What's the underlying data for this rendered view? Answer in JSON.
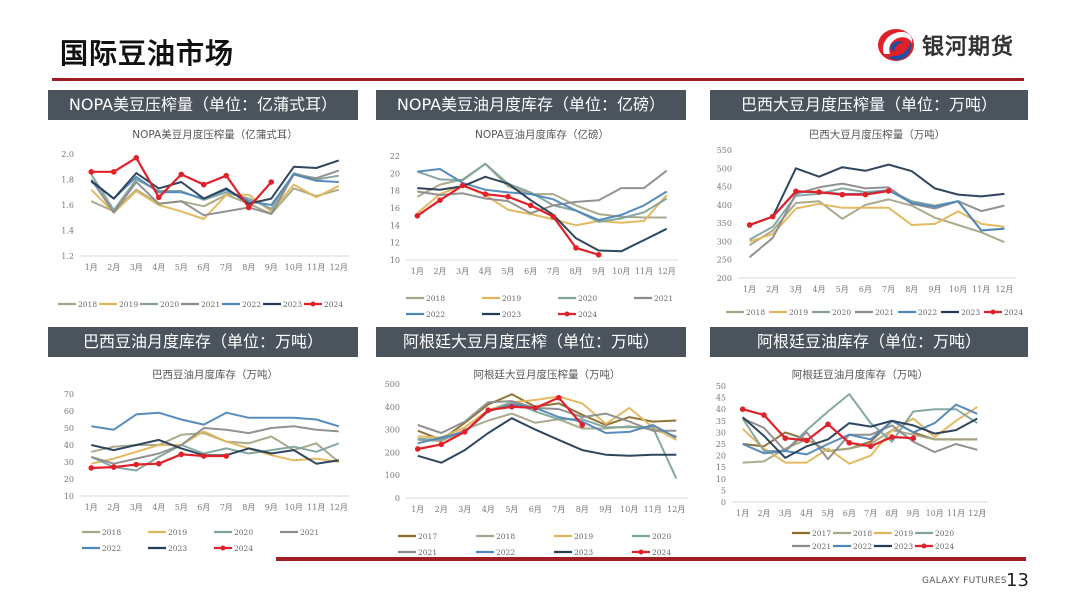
{
  "page": {
    "title": "国际豆油市场",
    "brand_cn": "银河期货",
    "brand_en": "GALAXY FUTURES",
    "page_number": "13",
    "accent": "#a01c24",
    "header_bg": "#4b535c"
  },
  "panels": [
    {
      "header": "NOPA美豆压榨量（单位：亿蒲式耳）"
    },
    {
      "header": "NOPA美豆油月度库存（单位：亿磅）"
    },
    {
      "header": "巴西大豆月度压榨量（单位：万吨）"
    },
    {
      "header": "巴西豆油月度库存（单位：万吨）"
    },
    {
      "header": "阿根廷大豆月度压榨（单位：万吨）"
    },
    {
      "header": "阿根廷豆油库存（单位：万吨）"
    }
  ],
  "series_colors": {
    "2017": "#8b6d2e",
    "2018": "#a5a587",
    "2019": "#e0b65a",
    "2020": "#7fa39d",
    "2021": "#8c8c8c",
    "2022": "#4f86b8",
    "2023": "#253c55",
    "2024": "#e0212a"
  },
  "chart_data": [
    {
      "type": "line",
      "title": "NOPA美豆月度压榨量（亿蒲式耳）",
      "categories": [
        "1月",
        "2月",
        "3月",
        "4月",
        "5月",
        "6月",
        "7月",
        "8月",
        "9月",
        "10月",
        "11月",
        "12月"
      ],
      "ylim": [
        1.2,
        2.0
      ],
      "yticks": [
        "1.2",
        "1.4",
        "1.6",
        "1.8",
        "2.0"
      ],
      "legend": "bottom",
      "series": [
        {
          "name": "2018",
          "values": [
            1.63,
            1.55,
            1.72,
            1.61,
            1.63,
            1.59,
            1.68,
            1.61,
            1.53,
            1.73,
            1.67,
            1.72
          ]
        },
        {
          "name": "2019",
          "values": [
            1.72,
            1.54,
            1.71,
            1.6,
            1.55,
            1.49,
            1.68,
            1.68,
            1.55,
            1.76,
            1.66,
            1.75
          ]
        },
        {
          "name": "2020",
          "values": [
            1.84,
            1.56,
            1.8,
            1.71,
            1.71,
            1.64,
            1.7,
            1.65,
            1.57,
            1.85,
            1.8,
            1.83
          ]
        },
        {
          "name": "2021",
          "values": [
            1.8,
            1.54,
            1.78,
            1.61,
            1.63,
            1.52,
            1.55,
            1.58,
            1.53,
            1.84,
            1.81,
            1.87
          ]
        },
        {
          "name": "2022",
          "values": [
            1.78,
            1.65,
            1.82,
            1.7,
            1.7,
            1.65,
            1.72,
            1.63,
            1.6,
            1.84,
            1.79,
            1.78
          ]
        },
        {
          "name": "2023",
          "values": [
            1.79,
            1.65,
            1.85,
            1.73,
            1.78,
            1.65,
            1.73,
            1.61,
            1.65,
            1.9,
            1.89,
            1.95
          ]
        },
        {
          "name": "2024",
          "values": [
            1.86,
            1.86,
            1.97,
            1.66,
            1.84,
            1.76,
            1.83,
            1.58,
            1.78,
            null,
            null,
            null
          ],
          "markers": true
        }
      ]
    },
    {
      "type": "line",
      "title": "NOPA豆油月度库存（亿磅）",
      "categories": [
        "1月",
        "2月",
        "3月",
        "4月",
        "5月",
        "6月",
        "7月",
        "8月",
        "9月",
        "10月",
        "11月",
        "12月"
      ],
      "ylim": [
        10,
        22
      ],
      "yticks": [
        "10",
        "12",
        "14",
        "16",
        "18",
        "20",
        "22"
      ],
      "legend": "bottom",
      "series": [
        {
          "name": "2018",
          "values": [
            17.3,
            18.7,
            19.3,
            21.1,
            18.5,
            17.6,
            17.6,
            16.3,
            15.3,
            15.0,
            14.9,
            14.9
          ]
        },
        {
          "name": "2019",
          "values": [
            15.4,
            17.6,
            18.6,
            17.5,
            15.8,
            15.3,
            14.7,
            14.0,
            14.5,
            14.3,
            14.5,
            17.5
          ]
        },
        {
          "name": "2020",
          "values": [
            20.2,
            19.3,
            19.2,
            21.1,
            18.8,
            17.8,
            16.3,
            15.7,
            14.4,
            14.8,
            15.5,
            17.1
          ]
        },
        {
          "name": "2021",
          "values": [
            17.9,
            17.5,
            17.7,
            17.1,
            16.8,
            15.4,
            16.3,
            16.7,
            16.9,
            18.3,
            18.3,
            20.3
          ]
        },
        {
          "name": "2022",
          "values": [
            20.2,
            20.5,
            18.9,
            18.1,
            17.8,
            17.6,
            17.0,
            15.7,
            14.6,
            15.2,
            16.3,
            17.9
          ]
        },
        {
          "name": "2023",
          "values": [
            18.3,
            18.1,
            18.5,
            19.6,
            18.8,
            16.9,
            15.2,
            12.5,
            11.1,
            11.0,
            12.3,
            13.6
          ]
        },
        {
          "name": "2024",
          "values": [
            15.1,
            16.9,
            18.6,
            17.6,
            17.3,
            16.3,
            15.0,
            11.4,
            10.6,
            null,
            null,
            null
          ],
          "markers": true
        }
      ]
    },
    {
      "type": "line",
      "title": "巴西大豆月度压榨量（万吨）",
      "categories": [
        "1月",
        "2月",
        "3月",
        "4月",
        "5月",
        "6月",
        "7月",
        "8月",
        "9月",
        "10月",
        "11月",
        "12月"
      ],
      "ylim": [
        200,
        550
      ],
      "yticks": [
        "200",
        "250",
        "300",
        "350",
        "400",
        "450",
        "500",
        "550"
      ],
      "legend": "bottom",
      "series": [
        {
          "name": "2018",
          "values": [
            290,
            330,
            405,
            410,
            362,
            400,
            415,
            398,
            365,
            345,
            325,
            298
          ]
        },
        {
          "name": "2019",
          "values": [
            300,
            320,
            390,
            403,
            392,
            392,
            392,
            345,
            348,
            382,
            348,
            340
          ]
        },
        {
          "name": "2020",
          "values": [
            305,
            340,
            425,
            430,
            445,
            435,
            440,
            410,
            398,
            410,
            330,
            335
          ]
        },
        {
          "name": "2021",
          "values": [
            257,
            310,
            430,
            448,
            458,
            445,
            448,
            403,
            390,
            410,
            383,
            398
          ]
        },
        {
          "name": "2022",
          "values": [
            345,
            368,
            435,
            435,
            430,
            430,
            440,
            405,
            395,
            410,
            330,
            335
          ]
        },
        {
          "name": "2023",
          "values": [
            345,
            368,
            500,
            477,
            503,
            493,
            510,
            492,
            445,
            428,
            423,
            430
          ]
        },
        {
          "name": "2024",
          "values": [
            345,
            368,
            437,
            435,
            428,
            428,
            438,
            null,
            null,
            null,
            null,
            null
          ],
          "markers": true
        }
      ]
    },
    {
      "type": "line",
      "title": "巴西豆油月度库存（万吨）",
      "categories": [
        "1月",
        "2月",
        "3月",
        "4月",
        "5月",
        "6月",
        "7月",
        "8月",
        "9月",
        "10月",
        "11月",
        "12月"
      ],
      "ylim": [
        10,
        70
      ],
      "yticks": [
        "10",
        "20",
        "30",
        "40",
        "50",
        "60",
        "70"
      ],
      "legend": "bottom",
      "series": [
        {
          "name": "2018",
          "values": [
            36,
            39,
            40,
            40,
            46,
            47,
            42,
            41,
            45,
            37,
            41,
            30
          ]
        },
        {
          "name": "2019",
          "values": [
            29,
            32,
            36,
            40,
            40,
            48,
            42,
            38,
            34,
            31,
            32,
            30
          ]
        },
        {
          "name": "2020",
          "values": [
            33,
            27,
            25,
            33,
            40,
            35,
            38,
            35,
            37,
            39,
            36,
            41
          ]
        },
        {
          "name": "2021",
          "values": [
            33,
            29,
            32,
            35,
            40,
            50,
            49,
            47,
            50,
            51,
            49,
            48
          ]
        },
        {
          "name": "2022",
          "values": [
            51,
            49,
            58,
            59,
            55,
            52,
            59,
            56,
            56,
            56,
            55,
            51
          ]
        },
        {
          "name": "2023",
          "values": [
            40,
            37,
            40,
            43,
            38,
            34,
            34,
            38,
            35,
            37,
            29,
            31
          ]
        },
        {
          "name": "2024",
          "values": [
            26.5,
            27,
            28.5,
            29,
            34.5,
            33.5,
            33.5,
            null,
            null,
            null,
            null,
            null
          ],
          "markers": true
        }
      ]
    },
    {
      "type": "line",
      "title": "阿根廷大豆月度压榨量（万吨）",
      "categories": [
        "1月",
        "2月",
        "3月",
        "4月",
        "5月",
        "6月",
        "7月",
        "8月",
        "9月",
        "10月",
        "11月",
        "12月"
      ],
      "ylim": [
        0,
        500
      ],
      "yticks": [
        "0",
        "100",
        "200",
        "300",
        "400",
        "500"
      ],
      "legend": "bottom",
      "series": [
        {
          "name": "2017",
          "values": [
            295,
            255,
            330,
            410,
            455,
            400,
            415,
            365,
            320,
            355,
            335,
            340
          ]
        },
        {
          "name": "2018",
          "values": [
            255,
            250,
            300,
            340,
            370,
            330,
            345,
            305,
            305,
            315,
            300,
            270
          ]
        },
        {
          "name": "2019",
          "values": [
            270,
            265,
            310,
            385,
            420,
            430,
            445,
            415,
            325,
            395,
            310,
            255
          ]
        },
        {
          "name": "2020",
          "values": [
            260,
            255,
            290,
            380,
            420,
            380,
            345,
            345,
            310,
            310,
            310,
            85
          ]
        },
        {
          "name": "2021",
          "values": [
            320,
            285,
            335,
            420,
            425,
            395,
            390,
            355,
            370,
            335,
            295,
            295
          ]
        },
        {
          "name": "2022",
          "values": [
            240,
            265,
            290,
            380,
            410,
            395,
            355,
            335,
            285,
            290,
            320,
            265
          ]
        },
        {
          "name": "2023",
          "values": [
            185,
            155,
            210,
            285,
            350,
            300,
            255,
            210,
            190,
            185,
            190,
            190
          ]
        },
        {
          "name": "2024",
          "values": [
            215,
            235,
            290,
            385,
            400,
            395,
            440,
            320,
            null,
            null,
            null,
            null
          ],
          "markers": true
        }
      ]
    },
    {
      "type": "line",
      "title": "阿根廷豆油月度库存（万吨）",
      "categories": [
        "1月",
        "2月",
        "3月",
        "4月",
        "5月",
        "6月",
        "7月",
        "8月",
        "9月",
        "10月",
        "11月",
        "12月"
      ],
      "ylim": [
        0,
        50
      ],
      "yticks": [
        "0",
        "5",
        "10",
        "15",
        "20",
        "25",
        "30",
        "35",
        "40",
        "45",
        "50"
      ],
      "legend": "bottom",
      "series": [
        {
          "name": "2017",
          "values": [
            25,
            24,
            30,
            27,
            22,
            23,
            26,
            35,
            30,
            27,
            27,
            27
          ]
        },
        {
          "name": "2018",
          "values": [
            17,
            17.5,
            23,
            27,
            22,
            23,
            25,
            31,
            29,
            27,
            27,
            27
          ]
        },
        {
          "name": "2019",
          "values": [
            31.5,
            23,
            17,
            17,
            23,
            16.5,
            20,
            31,
            36,
            28,
            35,
            41
          ]
        },
        {
          "name": "2020",
          "values": [
            36,
            22,
            22,
            31,
            39,
            46.5,
            34,
            26,
            39,
            40,
            40,
            34
          ]
        },
        {
          "name": "2021",
          "values": [
            36,
            32,
            22,
            30,
            18.5,
            29,
            29,
            33,
            26,
            21.5,
            25,
            22.5
          ]
        },
        {
          "name": "2022",
          "values": [
            25,
            21,
            22,
            20.5,
            25,
            29,
            27,
            35,
            30,
            34,
            42,
            38
          ]
        },
        {
          "name": "2023",
          "values": [
            36.5,
            28.5,
            19,
            24,
            27,
            34,
            32.5,
            35,
            33,
            29.5,
            31,
            36
          ]
        },
        {
          "name": "2024",
          "values": [
            40,
            37.5,
            27.5,
            26.5,
            33.5,
            25.5,
            24,
            28,
            27.5,
            null,
            null,
            null
          ],
          "markers": true
        }
      ]
    }
  ]
}
